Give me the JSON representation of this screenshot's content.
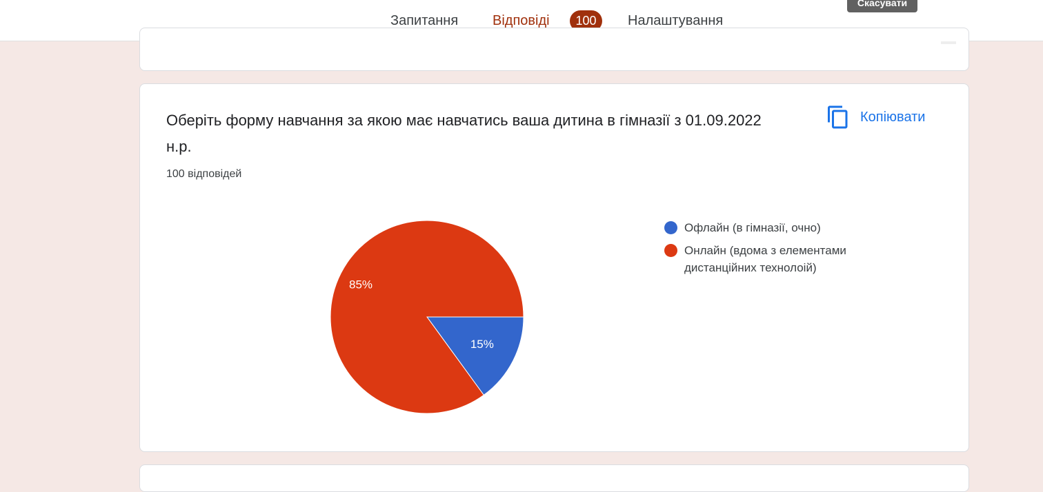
{
  "header": {
    "tabs": [
      {
        "label": "Запитання"
      },
      {
        "label": "Відповіді",
        "badge": "100",
        "active": true
      },
      {
        "label": "Налаштування"
      }
    ],
    "cancel_button": "Скасувати"
  },
  "question": {
    "title": "Оберіть форму навчання за якою має навчатись ваша дитина в гімназії з 01.09.2022 н.р.",
    "response_count": "100 відповідей",
    "copy_button": "Копіювати"
  },
  "colors": {
    "accent": "#a0300c",
    "link": "#1a73e8",
    "background": "#f5e8e5",
    "series_blue": "#3366cc",
    "series_red": "#dc3912"
  },
  "icons": {
    "copy": "copy-icon"
  },
  "chart_data": {
    "type": "pie",
    "labels": [
      "Офлайн (в гімназії, очно)",
      "Онлайн (вдома з елементами дистанційних технолоій)"
    ],
    "values": [
      15,
      85
    ],
    "display_labels": [
      "15%",
      "85%"
    ],
    "colors": [
      "#3366cc",
      "#dc3912"
    ],
    "legend_position": "right"
  }
}
